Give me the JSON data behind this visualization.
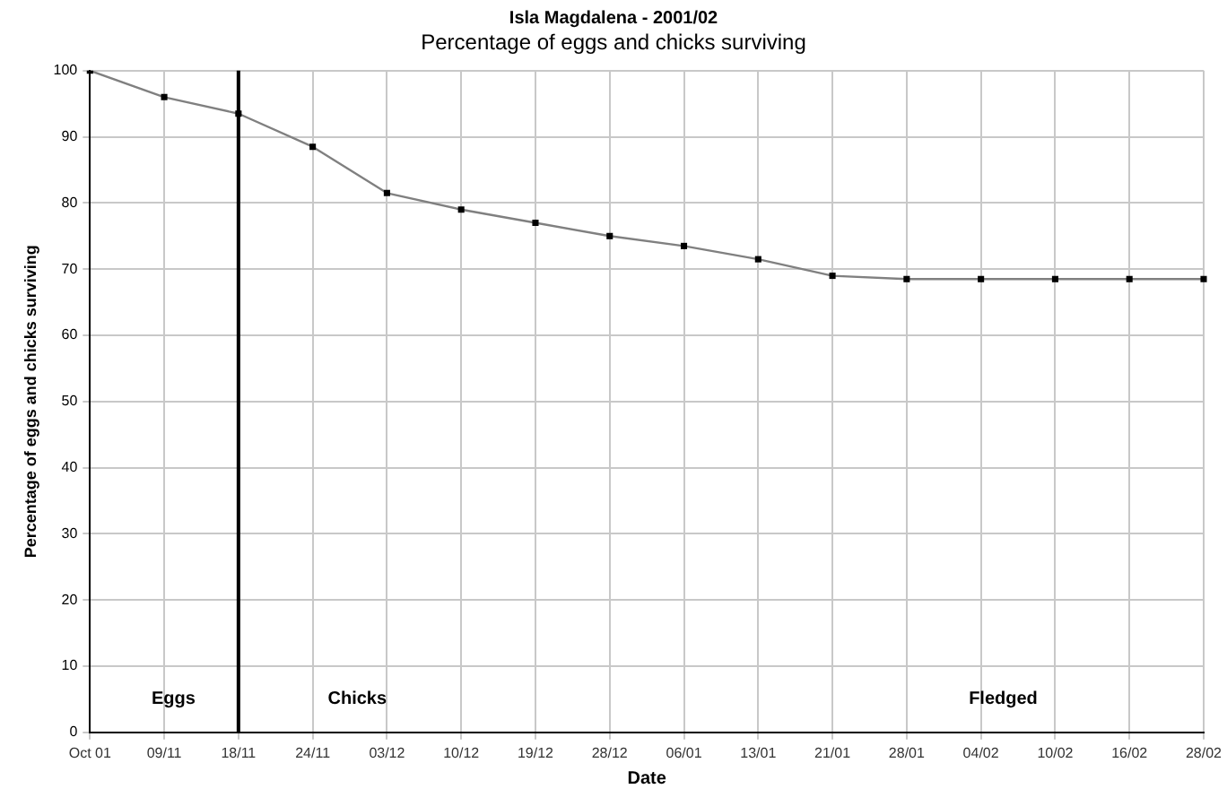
{
  "chart_data": {
    "type": "line",
    "title": "Isla Magdalena - 2001/02",
    "subtitle": "Percentage of eggs and chicks surviving",
    "xlabel": "Date",
    "ylabel": "Percentage of eggs and chicks surviving",
    "categories": [
      "Oct 01",
      "09/11",
      "18/11",
      "24/11",
      "03/12",
      "10/12",
      "19/12",
      "28/12",
      "06/01",
      "13/01",
      "21/01",
      "28/01",
      "04/02",
      "10/02",
      "16/02",
      "28/02"
    ],
    "series": [
      {
        "color": "#808080",
        "values": [
          100,
          96,
          93.5,
          88.5,
          81.5,
          79,
          77,
          75,
          73.5,
          71.5,
          69,
          68.5,
          68.5,
          68.5,
          68.5,
          68.5
        ]
      }
    ],
    "ylim": [
      0,
      100
    ],
    "yticks": [
      0,
      10,
      20,
      30,
      40,
      50,
      60,
      70,
      80,
      90,
      100
    ],
    "grid": true,
    "marker": "square",
    "line_style": "solid",
    "ref_lines": [
      {
        "axis": "x",
        "value": "18/11",
        "color": "#000000"
      }
    ],
    "annotations": [
      "Eggs",
      "Chicks",
      "Fledged"
    ]
  }
}
